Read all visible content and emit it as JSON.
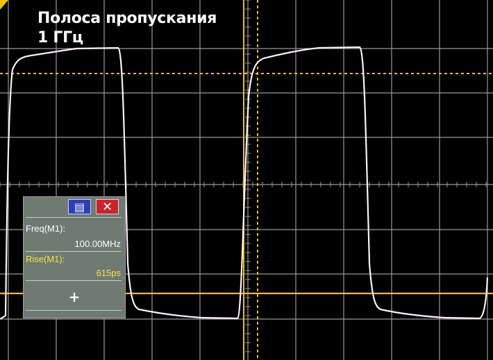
{
  "title": {
    "line1": "Полоса пропускания",
    "line2": "1 ГГц"
  },
  "measurement_panel": {
    "menu_icon": "list-icon",
    "close_icon": "close-icon",
    "close_glyph": "✕",
    "menu_glyph": "▤",
    "freq_label": "Freq(M1):",
    "freq_value": "100.00MHz",
    "rise_label": "Rise(M1):",
    "rise_value": "615ps",
    "add_glyph": "+"
  },
  "colors": {
    "trace": "#fff0ff",
    "cursor": "#f2c400",
    "grid": "#9a9a9a",
    "background": "#000000"
  }
}
